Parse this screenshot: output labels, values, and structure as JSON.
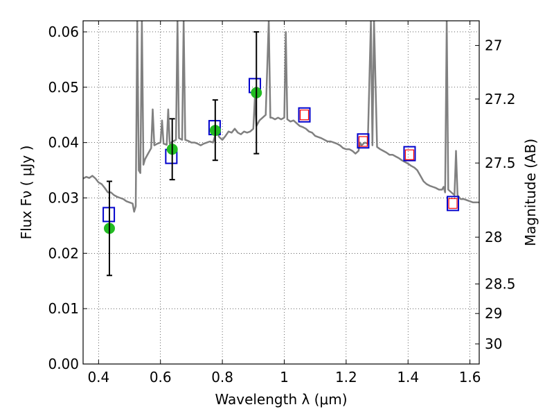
{
  "chart_data": {
    "type": "scatter",
    "xlabel": "Wavelength  λ (μm)",
    "ylabel": "Flux  Fν  ( μJy )",
    "y2label": "Magnitude (AB)",
    "xlim": [
      0.35,
      1.63
    ],
    "ylim": [
      0.0,
      0.062
    ],
    "grid": true,
    "xticks": [
      0.4,
      0.6,
      0.8,
      1.0,
      1.2,
      1.4,
      1.6
    ],
    "xtick_labels": [
      "0.4",
      "0.6",
      "0.8",
      "1",
      "1.2",
      "1.4",
      "1.6"
    ],
    "yticks": [
      0.0,
      0.01,
      0.02,
      0.03,
      0.04,
      0.05,
      0.06
    ],
    "ytick_labels": [
      "0.00",
      "0.01",
      "0.02",
      "0.03",
      "0.04",
      "0.05",
      "0.06"
    ],
    "mag_ticks": [
      {
        "label": "27",
        "mag": 27.0
      },
      {
        "label": "27.2",
        "mag": 27.2
      },
      {
        "label": "27.5",
        "mag": 27.5
      },
      {
        "label": "28",
        "mag": 28.0
      },
      {
        "label": "28.5",
        "mag": 28.5
      },
      {
        "label": "29",
        "mag": 29.0
      },
      {
        "label": "30",
        "mag": 30.0
      }
    ],
    "series": [
      {
        "kind": "line",
        "color": "#808080",
        "points": [
          [
            0.35,
            0.0335
          ],
          [
            0.36,
            0.0338
          ],
          [
            0.37,
            0.0336
          ],
          [
            0.38,
            0.034
          ],
          [
            0.39,
            0.0335
          ],
          [
            0.4,
            0.0328
          ],
          [
            0.41,
            0.0325
          ],
          [
            0.42,
            0.0318
          ],
          [
            0.43,
            0.031
          ],
          [
            0.44,
            0.031
          ],
          [
            0.45,
            0.0305
          ],
          [
            0.46,
            0.0302
          ],
          [
            0.47,
            0.03
          ],
          [
            0.48,
            0.0298
          ],
          [
            0.49,
            0.0294
          ],
          [
            0.5,
            0.0292
          ],
          [
            0.51,
            0.029
          ],
          [
            0.515,
            0.0275
          ],
          [
            0.52,
            0.0285
          ],
          [
            0.525,
            0.062
          ],
          [
            0.53,
            0.035
          ],
          [
            0.535,
            0.0345
          ],
          [
            0.54,
            0.062
          ],
          [
            0.545,
            0.036
          ],
          [
            0.55,
            0.037
          ],
          [
            0.56,
            0.038
          ],
          [
            0.57,
            0.039
          ],
          [
            0.575,
            0.046
          ],
          [
            0.58,
            0.0395
          ],
          [
            0.59,
            0.0398
          ],
          [
            0.6,
            0.04
          ],
          [
            0.605,
            0.044
          ],
          [
            0.61,
            0.0398
          ],
          [
            0.62,
            0.0396
          ],
          [
            0.625,
            0.046
          ],
          [
            0.63,
            0.0398
          ],
          [
            0.64,
            0.0402
          ],
          [
            0.65,
            0.0405
          ],
          [
            0.655,
            0.062
          ],
          [
            0.66,
            0.0408
          ],
          [
            0.67,
            0.0405
          ],
          [
            0.675,
            0.062
          ],
          [
            0.68,
            0.0405
          ],
          [
            0.69,
            0.0403
          ],
          [
            0.7,
            0.04
          ],
          [
            0.71,
            0.04
          ],
          [
            0.72,
            0.0398
          ],
          [
            0.73,
            0.0395
          ],
          [
            0.74,
            0.0398
          ],
          [
            0.75,
            0.04
          ],
          [
            0.76,
            0.0402
          ],
          [
            0.77,
            0.04
          ],
          [
            0.78,
            0.042
          ],
          [
            0.79,
            0.041
          ],
          [
            0.8,
            0.0405
          ],
          [
            0.81,
            0.0412
          ],
          [
            0.82,
            0.042
          ],
          [
            0.83,
            0.0418
          ],
          [
            0.84,
            0.0425
          ],
          [
            0.85,
            0.0418
          ],
          [
            0.86,
            0.0415
          ],
          [
            0.87,
            0.042
          ],
          [
            0.88,
            0.0418
          ],
          [
            0.89,
            0.042
          ],
          [
            0.9,
            0.0425
          ],
          [
            0.905,
            0.048
          ],
          [
            0.91,
            0.043
          ],
          [
            0.92,
            0.044
          ],
          [
            0.93,
            0.0445
          ],
          [
            0.94,
            0.045
          ],
          [
            0.95,
            0.062
          ],
          [
            0.955,
            0.0445
          ],
          [
            0.96,
            0.0445
          ],
          [
            0.97,
            0.0442
          ],
          [
            0.98,
            0.0445
          ],
          [
            0.99,
            0.0442
          ],
          [
            1.0,
            0.0445
          ],
          [
            1.005,
            0.06
          ],
          [
            1.01,
            0.0442
          ],
          [
            1.02,
            0.0438
          ],
          [
            1.03,
            0.044
          ],
          [
            1.04,
            0.0435
          ],
          [
            1.05,
            0.043
          ],
          [
            1.06,
            0.0428
          ],
          [
            1.07,
            0.0425
          ],
          [
            1.08,
            0.042
          ],
          [
            1.09,
            0.0418
          ],
          [
            1.1,
            0.0412
          ],
          [
            1.11,
            0.041
          ],
          [
            1.12,
            0.0408
          ],
          [
            1.13,
            0.0405
          ],
          [
            1.14,
            0.0402
          ],
          [
            1.15,
            0.0402
          ],
          [
            1.16,
            0.04
          ],
          [
            1.17,
            0.0398
          ],
          [
            1.18,
            0.0395
          ],
          [
            1.19,
            0.039
          ],
          [
            1.2,
            0.0388
          ],
          [
            1.21,
            0.0388
          ],
          [
            1.22,
            0.0385
          ],
          [
            1.23,
            0.038
          ],
          [
            1.24,
            0.0385
          ],
          [
            1.245,
            0.04
          ],
          [
            1.25,
            0.0395
          ],
          [
            1.26,
            0.04
          ],
          [
            1.27,
            0.0398
          ],
          [
            1.28,
            0.062
          ],
          [
            1.285,
            0.0395
          ],
          [
            1.29,
            0.062
          ],
          [
            1.3,
            0.0392
          ],
          [
            1.31,
            0.0388
          ],
          [
            1.32,
            0.0385
          ],
          [
            1.33,
            0.0382
          ],
          [
            1.34,
            0.0378
          ],
          [
            1.35,
            0.0378
          ],
          [
            1.36,
            0.0375
          ],
          [
            1.37,
            0.0372
          ],
          [
            1.38,
            0.0368
          ],
          [
            1.39,
            0.0365
          ],
          [
            1.4,
            0.0362
          ],
          [
            1.41,
            0.0358
          ],
          [
            1.42,
            0.0355
          ],
          [
            1.43,
            0.035
          ],
          [
            1.44,
            0.034
          ],
          [
            1.45,
            0.033
          ],
          [
            1.46,
            0.0325
          ],
          [
            1.47,
            0.0322
          ],
          [
            1.48,
            0.032
          ],
          [
            1.49,
            0.0318
          ],
          [
            1.5,
            0.0315
          ],
          [
            1.51,
            0.0315
          ],
          [
            1.515,
            0.032
          ],
          [
            1.52,
            0.031
          ],
          [
            1.525,
            0.062
          ],
          [
            1.53,
            0.0315
          ],
          [
            1.54,
            0.031
          ],
          [
            1.55,
            0.0305
          ],
          [
            1.555,
            0.0385
          ],
          [
            1.56,
            0.0305
          ],
          [
            1.57,
            0.0298
          ],
          [
            1.58,
            0.0298
          ],
          [
            1.59,
            0.0296
          ],
          [
            1.6,
            0.0294
          ],
          [
            1.61,
            0.0292
          ],
          [
            1.63,
            0.0292
          ]
        ]
      },
      {
        "kind": "markers",
        "marker": "square",
        "color": "#0000cc",
        "points": [
          [
            0.433,
            0.027
          ],
          [
            0.635,
            0.0375
          ],
          [
            0.775,
            0.0427
          ],
          [
            0.905,
            0.0503
          ],
          [
            1.065,
            0.045
          ],
          [
            1.255,
            0.0403
          ],
          [
            1.405,
            0.038
          ],
          [
            1.545,
            0.029
          ]
        ]
      },
      {
        "kind": "markers",
        "marker": "small-square",
        "color": "#ff0000",
        "points": [
          [
            1.065,
            0.045
          ],
          [
            1.255,
            0.0402
          ],
          [
            1.405,
            0.0378
          ],
          [
            1.545,
            0.029
          ]
        ]
      },
      {
        "kind": "markers",
        "marker": "circle",
        "color": "#22bb22",
        "points": [
          [
            0.435,
            0.0245
          ],
          [
            0.638,
            0.0388
          ],
          [
            0.777,
            0.0422
          ],
          [
            0.91,
            0.049
          ]
        ]
      },
      {
        "kind": "errorbars",
        "color": "#000000",
        "bars": [
          {
            "x": 0.435,
            "low": 0.016,
            "high": 0.033
          },
          {
            "x": 0.638,
            "low": 0.0333,
            "high": 0.0443
          },
          {
            "x": 0.777,
            "low": 0.0368,
            "high": 0.0477
          },
          {
            "x": 0.91,
            "low": 0.038,
            "high": 0.06
          }
        ]
      }
    ]
  }
}
